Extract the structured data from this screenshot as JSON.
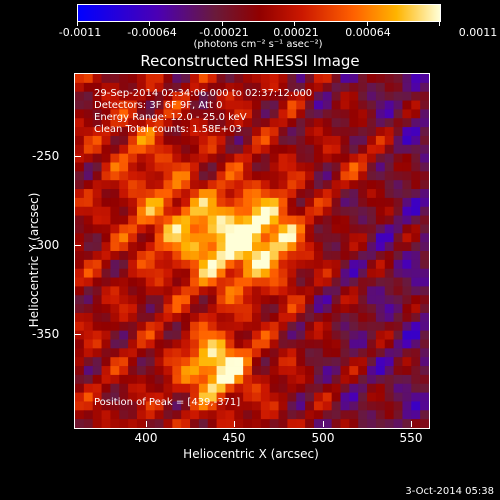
{
  "colorbar": {
    "ticks": [
      "-0.0011",
      "-0.00064",
      "-0.00021",
      "0.00021",
      "0.00064",
      "0.0011"
    ],
    "units": "(photons cm⁻² s⁻¹ asec⁻²)"
  },
  "title": "Reconstructed RHESSI Image",
  "info": {
    "line1": "29-Sep-2014 02:34:06.000 to 02:37:12.000",
    "line2": "Detectors: 3F 6F 9F, Att 0",
    "line3": "Energy Range: 12.0 - 25.0 keV",
    "line4": "Clean     Total counts: 1.58E+03"
  },
  "peak": "Position of Peak = [439,-371]",
  "axes": {
    "xlabel": "Heliocentric X (arcsec)",
    "ylabel": "Heliocentric Y (arcsec)",
    "xticks": [
      "400",
      "450",
      "500",
      "550"
    ],
    "yticks": [
      "-250",
      "-300",
      "-350"
    ]
  },
  "stamp": "3-Oct-2014 05:38"
}
